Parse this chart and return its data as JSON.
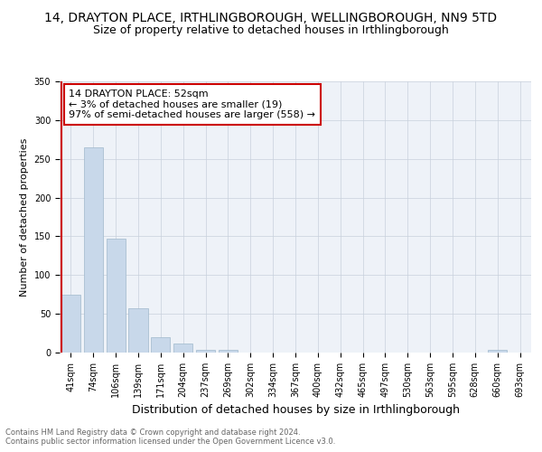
{
  "title": "14, DRAYTON PLACE, IRTHLINGBOROUGH, WELLINGBOROUGH, NN9 5TD",
  "subtitle": "Size of property relative to detached houses in Irthlingborough",
  "xlabel": "Distribution of detached houses by size in Irthlingborough",
  "ylabel": "Number of detached properties",
  "categories": [
    "41sqm",
    "74sqm",
    "106sqm",
    "139sqm",
    "171sqm",
    "204sqm",
    "237sqm",
    "269sqm",
    "302sqm",
    "334sqm",
    "367sqm",
    "400sqm",
    "432sqm",
    "465sqm",
    "497sqm",
    "530sqm",
    "563sqm",
    "595sqm",
    "628sqm",
    "660sqm",
    "693sqm"
  ],
  "values": [
    75,
    265,
    147,
    57,
    20,
    12,
    4,
    4,
    0,
    0,
    0,
    0,
    0,
    0,
    0,
    0,
    0,
    0,
    0,
    4,
    0
  ],
  "bar_color": "#c8d8ea",
  "bar_edge_color": "#a0b8cc",
  "highlight_color": "#cc0000",
  "annotation_text": "14 DRAYTON PLACE: 52sqm\n← 3% of detached houses are smaller (19)\n97% of semi-detached houses are larger (558) →",
  "annotation_box_color": "#ffffff",
  "annotation_box_edge": "#cc0000",
  "ylim": [
    0,
    350
  ],
  "yticks": [
    0,
    50,
    100,
    150,
    200,
    250,
    300,
    350
  ],
  "bg_color": "#eef2f8",
  "grid_color": "#c8d0dc",
  "footer1": "Contains HM Land Registry data © Crown copyright and database right 2024.",
  "footer2": "Contains public sector information licensed under the Open Government Licence v3.0.",
  "title_fontsize": 10,
  "subtitle_fontsize": 9,
  "xlabel_fontsize": 9,
  "ylabel_fontsize": 8,
  "tick_fontsize": 7,
  "footer_fontsize": 6,
  "ann_fontsize": 8
}
